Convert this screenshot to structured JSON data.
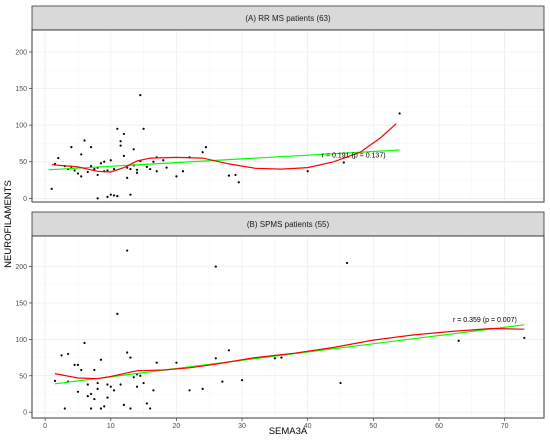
{
  "chart_data": {
    "type": "scatter",
    "xlabel": "SEMA3A",
    "ylabel": "NEUROFILAMENTS",
    "xlim": [
      -2,
      76
    ],
    "x_ticks": [
      0,
      10,
      20,
      30,
      40,
      50,
      60,
      70
    ],
    "grid": true,
    "colors": {
      "linear_fit": "#00ff00",
      "smooth_fit": "#ff0000",
      "points": "#000000",
      "strip": "#d9d9d9"
    },
    "panels": [
      {
        "strip_title": "(A) RR MS patients (63)",
        "ylim": [
          -5,
          230
        ],
        "y_ticks": [
          0,
          50,
          100,
          150,
          200
        ],
        "annotation": {
          "text": "r = 0.191 (p = 0.137)",
          "x": 47,
          "y": 56
        },
        "points": [
          [
            1,
            13
          ],
          [
            1.5,
            47
          ],
          [
            2,
            55
          ],
          [
            3,
            44
          ],
          [
            3.5,
            40
          ],
          [
            4,
            70
          ],
          [
            4,
            43
          ],
          [
            4.5,
            38
          ],
          [
            5,
            34
          ],
          [
            5.5,
            30
          ],
          [
            5.5,
            60
          ],
          [
            6,
            79
          ],
          [
            6.5,
            36
          ],
          [
            7,
            44
          ],
          [
            7,
            70
          ],
          [
            7.5,
            40
          ],
          [
            8,
            42
          ],
          [
            8,
            32
          ],
          [
            8.5,
            48
          ],
          [
            9,
            37
          ],
          [
            9,
            50
          ],
          [
            9.5,
            38
          ],
          [
            9.5,
            2
          ],
          [
            10,
            52
          ],
          [
            10,
            5
          ],
          [
            10.5,
            4
          ],
          [
            10.5,
            40
          ],
          [
            11,
            3
          ],
          [
            11,
            95
          ],
          [
            11.5,
            78
          ],
          [
            11.5,
            72
          ],
          [
            12,
            58
          ],
          [
            12,
            88
          ],
          [
            12.5,
            42
          ],
          [
            12.5,
            28
          ],
          [
            13,
            5
          ],
          [
            13,
            40
          ],
          [
            13.5,
            45
          ],
          [
            13.5,
            67
          ],
          [
            14,
            35
          ],
          [
            14,
            39
          ],
          [
            14.5,
            51
          ],
          [
            14.5,
            141
          ],
          [
            15,
            95
          ],
          [
            15.5,
            43
          ],
          [
            16,
            40
          ],
          [
            16.5,
            50
          ],
          [
            17,
            37
          ],
          [
            17,
            56
          ],
          [
            18,
            52
          ],
          [
            18.5,
            42
          ],
          [
            21,
            37
          ],
          [
            22,
            56
          ],
          [
            24,
            63
          ],
          [
            24.5,
            70
          ],
          [
            28,
            31
          ],
          [
            29,
            32
          ],
          [
            29.5,
            22
          ],
          [
            40,
            37
          ],
          [
            45.5,
            49
          ],
          [
            54,
            116
          ],
          [
            8,
            0
          ],
          [
            20,
            30
          ]
        ],
        "linear_fit": [
          [
            0.5,
            39
          ],
          [
            54,
            66
          ]
        ],
        "smooth_fit": [
          [
            1,
            46
          ],
          [
            5,
            43
          ],
          [
            8,
            37
          ],
          [
            10,
            36
          ],
          [
            12,
            42
          ],
          [
            14,
            51
          ],
          [
            16,
            55
          ],
          [
            20,
            56
          ],
          [
            24,
            55
          ],
          [
            28,
            47
          ],
          [
            32,
            41
          ],
          [
            36,
            40
          ],
          [
            40,
            42
          ],
          [
            44,
            50
          ],
          [
            48,
            63
          ],
          [
            51,
            82
          ],
          [
            53.5,
            102
          ]
        ]
      },
      {
        "strip_title": "(B) SPMS patients (55)",
        "ylim": [
          -8,
          242
        ],
        "y_ticks": [
          0,
          50,
          100,
          150,
          200
        ],
        "annotation": {
          "text": "r = 0.359 (p = 0.007)",
          "x": 67,
          "y": 124
        },
        "points": [
          [
            1.5,
            43
          ],
          [
            2.5,
            78
          ],
          [
            3,
            5
          ],
          [
            3.5,
            42
          ],
          [
            3.5,
            80
          ],
          [
            4.5,
            65
          ],
          [
            5,
            28
          ],
          [
            5,
            65
          ],
          [
            5.5,
            58
          ],
          [
            6,
            95
          ],
          [
            6.5,
            38
          ],
          [
            6.5,
            22
          ],
          [
            7,
            5
          ],
          [
            7,
            25
          ],
          [
            7.5,
            18
          ],
          [
            7.5,
            58
          ],
          [
            8,
            32
          ],
          [
            8,
            40
          ],
          [
            8.5,
            72
          ],
          [
            8.5,
            5
          ],
          [
            9,
            8
          ],
          [
            9.5,
            20
          ],
          [
            9.5,
            38
          ],
          [
            10,
            35
          ],
          [
            10.5,
            30
          ],
          [
            11,
            135
          ],
          [
            11.5,
            38
          ],
          [
            12,
            10
          ],
          [
            12.5,
            82
          ],
          [
            12.5,
            222
          ],
          [
            13,
            75
          ],
          [
            13,
            5
          ],
          [
            13.5,
            48
          ],
          [
            14,
            52
          ],
          [
            14,
            35
          ],
          [
            14.5,
            50
          ],
          [
            15,
            40
          ],
          [
            15.5,
            12
          ],
          [
            16,
            5
          ],
          [
            16.5,
            30
          ],
          [
            17,
            68
          ],
          [
            20,
            68
          ],
          [
            22,
            30
          ],
          [
            24,
            32
          ],
          [
            26,
            74
          ],
          [
            26,
            200
          ],
          [
            27,
            42
          ],
          [
            28,
            85
          ],
          [
            30,
            44
          ],
          [
            35,
            74
          ],
          [
            36,
            75
          ],
          [
            45,
            40
          ],
          [
            46,
            205
          ],
          [
            63,
            98
          ],
          [
            73,
            102
          ]
        ],
        "linear_fit": [
          [
            1.5,
            39
          ],
          [
            73,
            120
          ]
        ],
        "smooth_fit": [
          [
            1.5,
            53
          ],
          [
            5,
            47
          ],
          [
            8,
            46
          ],
          [
            10,
            49
          ],
          [
            14,
            57
          ],
          [
            18,
            58
          ],
          [
            22,
            61
          ],
          [
            26,
            66
          ],
          [
            32,
            75
          ],
          [
            38,
            81
          ],
          [
            44,
            89
          ],
          [
            50,
            99
          ],
          [
            56,
            106
          ],
          [
            62,
            111
          ],
          [
            68,
            115
          ],
          [
            73,
            114
          ]
        ]
      }
    ]
  }
}
